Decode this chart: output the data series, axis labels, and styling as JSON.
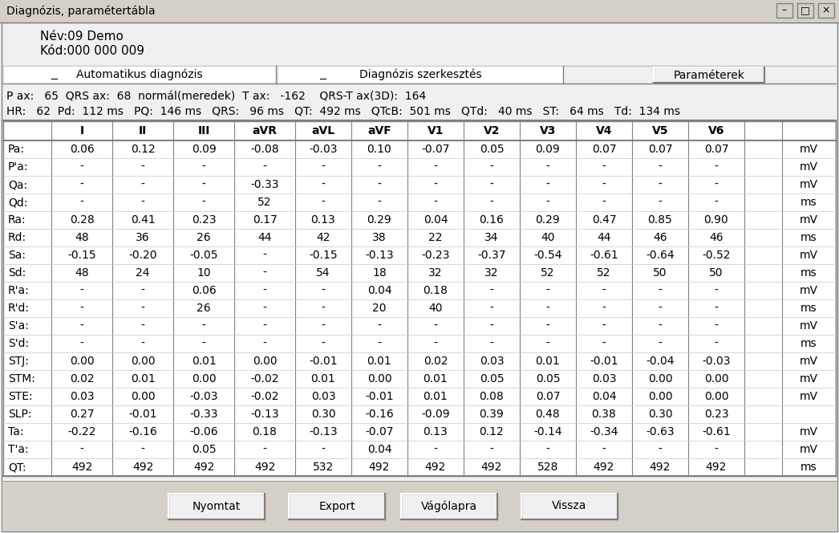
{
  "title": "Diagnózis, paramétertábla",
  "name_line": "Név:09 Demo",
  "code_line": "Kód:000 000 009",
  "tab1": "Automatikus diagnózis",
  "tab2": "Diagnózis szerkesztés",
  "tab3": "Paraméterek",
  "info_line1": "P ax:   65  QRS ax:  68  normál(meredek)  T ax:   -162    QRS-T ax(3D):  164",
  "info_line2": "HR:   62  Pd:  112 ms   PQ:  146 ms   QRS:   96 ms   QT:  492 ms   QTcB:  501 ms   QTd:   40 ms   ST:   64 ms   Td:  134 ms",
  "col_headers": [
    "",
    "I",
    "II",
    "III",
    "aVR",
    "aVL",
    "aVF",
    "V1",
    "V2",
    "V3",
    "V4",
    "V5",
    "V6",
    ""
  ],
  "row_labels": [
    "Pa:",
    "P'a:",
    "Qa:",
    "Qd:",
    "Ra:",
    "Rd:",
    "Sa:",
    "Sd:",
    "R'a:",
    "R'd:",
    "S'a:",
    "S'd:",
    "STJ:",
    "STM:",
    "STE:",
    "SLP:",
    "Ta:",
    "T'a:",
    "QT:"
  ],
  "units": [
    "mV",
    "mV",
    "mV",
    "ms",
    "mV",
    "ms",
    "mV",
    "ms",
    "mV",
    "ms",
    "mV",
    "ms",
    "mV",
    "mV",
    "mV",
    "",
    "mV",
    "mV",
    "ms"
  ],
  "table_data": [
    [
      "0.06",
      "0.12",
      "0.09",
      "-0.08",
      "-0.03",
      "0.10",
      "-0.07",
      "0.05",
      "0.09",
      "0.07",
      "0.07",
      "0.07"
    ],
    [
      "-",
      "-",
      "-",
      "-",
      "-",
      "-",
      "-",
      "-",
      "-",
      "-",
      "-",
      "-"
    ],
    [
      "-",
      "-",
      "-",
      "-0.33",
      "-",
      "-",
      "-",
      "-",
      "-",
      "-",
      "-",
      "-"
    ],
    [
      "-",
      "-",
      "-",
      "52",
      "-",
      "-",
      "-",
      "-",
      "-",
      "-",
      "-",
      "-"
    ],
    [
      "0.28",
      "0.41",
      "0.23",
      "0.17",
      "0.13",
      "0.29",
      "0.04",
      "0.16",
      "0.29",
      "0.47",
      "0.85",
      "0.90"
    ],
    [
      "48",
      "36",
      "26",
      "44",
      "42",
      "38",
      "22",
      "34",
      "40",
      "44",
      "46",
      "46"
    ],
    [
      "-0.15",
      "-0.20",
      "-0.05",
      "-",
      "-0.15",
      "-0.13",
      "-0.23",
      "-0.37",
      "-0.54",
      "-0.61",
      "-0.64",
      "-0.52"
    ],
    [
      "48",
      "24",
      "10",
      "-",
      "54",
      "18",
      "32",
      "32",
      "52",
      "52",
      "50",
      "50"
    ],
    [
      "-",
      "-",
      "0.06",
      "-",
      "-",
      "0.04",
      "0.18",
      "-",
      "-",
      "-",
      "-",
      "-"
    ],
    [
      "-",
      "-",
      "26",
      "-",
      "-",
      "20",
      "40",
      "-",
      "-",
      "-",
      "-",
      "-"
    ],
    [
      "-",
      "-",
      "-",
      "-",
      "-",
      "-",
      "-",
      "-",
      "-",
      "-",
      "-",
      "-"
    ],
    [
      "-",
      "-",
      "-",
      "-",
      "-",
      "-",
      "-",
      "-",
      "-",
      "-",
      "-",
      "-"
    ],
    [
      "0.00",
      "0.00",
      "0.01",
      "0.00",
      "-0.01",
      "0.01",
      "0.02",
      "0.03",
      "0.01",
      "-0.01",
      "-0.04",
      "-0.03"
    ],
    [
      "0.02",
      "0.01",
      "0.00",
      "-0.02",
      "0.01",
      "0.00",
      "0.01",
      "0.05",
      "0.05",
      "0.03",
      "0.00",
      "0.00"
    ],
    [
      "0.03",
      "0.00",
      "-0.03",
      "-0.02",
      "0.03",
      "-0.01",
      "0.01",
      "0.08",
      "0.07",
      "0.04",
      "0.00",
      "0.00"
    ],
    [
      "0.27",
      "-0.01",
      "-0.33",
      "-0.13",
      "0.30",
      "-0.16",
      "-0.09",
      "0.39",
      "0.48",
      "0.38",
      "0.30",
      "0.23"
    ],
    [
      "-0.22",
      "-0.16",
      "-0.06",
      "0.18",
      "-0.13",
      "-0.07",
      "0.13",
      "0.12",
      "-0.14",
      "-0.34",
      "-0.63",
      "-0.61"
    ],
    [
      "-",
      "-",
      "0.05",
      "-",
      "-",
      "0.04",
      "-",
      "-",
      "-",
      "-",
      "-",
      "-"
    ],
    [
      "492",
      "492",
      "492",
      "492",
      "532",
      "492",
      "492",
      "492",
      "528",
      "492",
      "492",
      "492"
    ]
  ],
  "buttons": [
    "Nyomtat",
    "Export",
    "Vágólapra",
    "Vissza"
  ],
  "bg_color": "#f0f0f0",
  "table_bg": "#ffffff",
  "text_color": "#000000",
  "titlebar_bg": "#d4d0c8",
  "btn_bg": "#d4d0c8"
}
